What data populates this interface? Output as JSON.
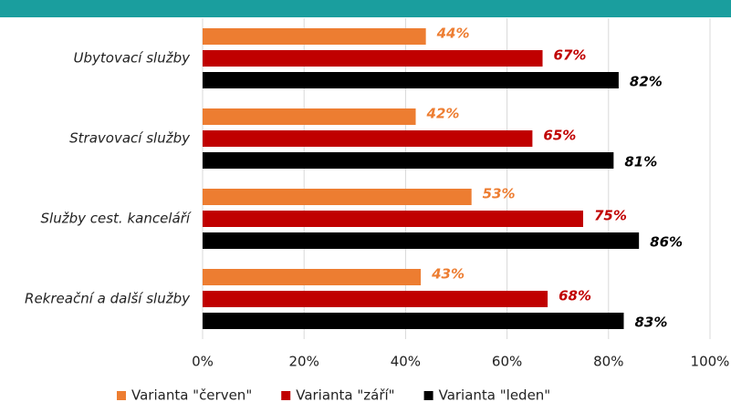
{
  "chart_data": {
    "type": "barh",
    "categories": [
      "Ubytovací služby",
      "Stravovací služby",
      "Služby cest. kanceláří",
      "Rekreační a další služby"
    ],
    "series": [
      {
        "name": "Varianta \"červen\"",
        "color": "#ed7d31",
        "values": [
          44,
          42,
          53,
          43
        ],
        "value_labels": [
          "44%",
          "42%",
          "53%",
          "43%"
        ]
      },
      {
        "name": "Varianta \"září\"",
        "color": "#c00000",
        "values": [
          67,
          65,
          75,
          68
        ],
        "value_labels": [
          "67%",
          "65%",
          "75%",
          "68%"
        ]
      },
      {
        "name": "Varianta \"leden\"",
        "color": "#000000",
        "values": [
          82,
          81,
          86,
          83
        ],
        "value_labels": [
          "82%",
          "81%",
          "86%",
          "83%"
        ]
      }
    ],
    "xlim": [
      0,
      100
    ],
    "xticks": [
      {
        "value": 0,
        "label": "0%"
      },
      {
        "value": 20,
        "label": "20%"
      },
      {
        "value": 40,
        "label": "40%"
      },
      {
        "value": 60,
        "label": "60%"
      },
      {
        "value": 80,
        "label": "80%"
      },
      {
        "value": 100,
        "label": "100%"
      }
    ],
    "grid": true,
    "legend": "bottom"
  }
}
